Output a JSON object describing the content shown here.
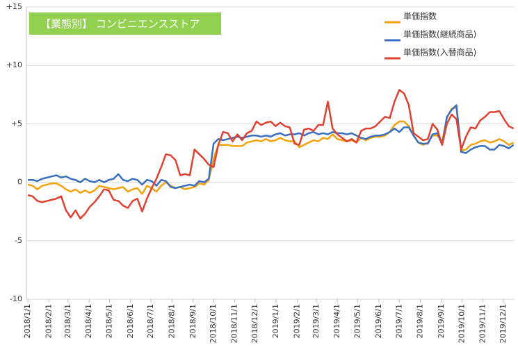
{
  "chart_data": {
    "type": "line",
    "title": "【業態別】 コンビニエンスストア",
    "title_color": "#92d050",
    "x": [
      0,
      1,
      2,
      3,
      4,
      5,
      6,
      7,
      8,
      9,
      10,
      11,
      12,
      13,
      14,
      15,
      16,
      17,
      18,
      19,
      20,
      21,
      22,
      23,
      24,
      25,
      26,
      27,
      28,
      29,
      30,
      31,
      32,
      33,
      34,
      35,
      36,
      37,
      38,
      39,
      40,
      41,
      42,
      43,
      44,
      45,
      46,
      47,
      48,
      49,
      50,
      51,
      52,
      53,
      54,
      55,
      56,
      57,
      58,
      59,
      60,
      61,
      62,
      63,
      64,
      65,
      66,
      67,
      68,
      69,
      70,
      71,
      72,
      73,
      74,
      75,
      76,
      77,
      78,
      79,
      80,
      81,
      82,
      83,
      84,
      85,
      86,
      87,
      88,
      89,
      90,
      91,
      92,
      93,
      94,
      95,
      96,
      97,
      98,
      99,
      100,
      101,
      102
    ],
    "xlim": [
      -0.3,
      102.2
    ],
    "xticks": [
      {
        "value": 0,
        "label": "2018/1/1"
      },
      {
        "value": 4.43,
        "label": "2018/2/1"
      },
      {
        "value": 8.43,
        "label": "2018/3/1"
      },
      {
        "value": 12.86,
        "label": "2018/4/1"
      },
      {
        "value": 17.14,
        "label": "2018/5/1"
      },
      {
        "value": 21.57,
        "label": "2018/6/1"
      },
      {
        "value": 25.86,
        "label": "2018/7/1"
      },
      {
        "value": 30.29,
        "label": "2018/8/1"
      },
      {
        "value": 34.71,
        "label": "2018/9/1"
      },
      {
        "value": 39,
        "label": "2018/10/1"
      },
      {
        "value": 43.43,
        "label": "2018/11/1"
      },
      {
        "value": 47.71,
        "label": "2018/12/1"
      },
      {
        "value": 52.14,
        "label": "2019/1/1"
      },
      {
        "value": 56.57,
        "label": "2019/2/1"
      },
      {
        "value": 60.57,
        "label": "2019/3/1"
      },
      {
        "value": 65,
        "label": "2019/4/1"
      },
      {
        "value": 69.29,
        "label": "2019/5/1"
      },
      {
        "value": 73.71,
        "label": "2019/6/1"
      },
      {
        "value": 78,
        "label": "2019/7/1"
      },
      {
        "value": 82.43,
        "label": "2019/8/1"
      },
      {
        "value": 86.86,
        "label": "2019/9/1"
      },
      {
        "value": 91.14,
        "label": "2019/10/1"
      },
      {
        "value": 95.57,
        "label": "2019/11/1"
      },
      {
        "value": 99.86,
        "label": "2019/12/1"
      }
    ],
    "ylim": [
      -10,
      15
    ],
    "yticks": [
      -10,
      -5,
      0,
      {
        "value": 5,
        "label": "+5"
      },
      {
        "value": 10,
        "label": "+10"
      },
      {
        "value": 15,
        "label": "+15"
      }
    ],
    "grid": true,
    "legend": "top-right",
    "series": [
      {
        "name": "単価指数",
        "color": "#f5a20a",
        "values": [
          -0.2,
          -0.3,
          -0.6,
          -0.3,
          -0.2,
          -0.1,
          -0.1,
          -0.3,
          -0.6,
          -0.8,
          -0.6,
          -0.9,
          -0.7,
          -0.9,
          -0.7,
          -0.3,
          -0.4,
          -0.5,
          -0.6,
          -0.5,
          -0.4,
          -0.8,
          -0.6,
          -0.5,
          -1.0,
          -0.3,
          -0.5,
          -0.8,
          -0.3,
          0.0,
          -0.3,
          -0.5,
          -0.4,
          -0.6,
          -0.5,
          -0.4,
          -0.1,
          -0.2,
          0.2,
          2.0,
          3.2,
          3.2,
          3.2,
          3.1,
          3.1,
          3.1,
          3.4,
          3.5,
          3.6,
          3.5,
          3.7,
          3.5,
          3.6,
          3.8,
          3.6,
          3.5,
          3.5,
          3.0,
          3.2,
          3.4,
          3.6,
          3.5,
          3.8,
          3.7,
          4.1,
          3.7,
          3.6,
          3.5,
          3.6,
          3.4,
          3.8,
          3.6,
          3.8,
          3.9,
          3.9,
          4.0,
          4.3,
          4.9,
          5.2,
          5.2,
          4.8,
          4.0,
          3.4,
          3.2,
          3.4,
          4.0,
          4.0,
          3.5,
          5.5,
          6.3,
          6.4,
          2.7,
          2.8,
          3.2,
          3.3,
          3.5,
          3.6,
          3.4,
          3.5,
          3.7,
          3.5,
          3.2,
          3.4
        ]
      },
      {
        "name": "単価指数(継続商品)",
        "color": "#3a6fbf",
        "values": [
          0.2,
          0.2,
          0.1,
          0.3,
          0.4,
          0.5,
          0.6,
          0.4,
          0.5,
          0.3,
          0.2,
          0.0,
          0.3,
          0.1,
          0.0,
          0.2,
          0.0,
          0.2,
          0.3,
          0.7,
          0.2,
          0.1,
          0.3,
          0.2,
          -0.2,
          0.2,
          0.1,
          -0.3,
          0.2,
          0.1,
          -0.4,
          -0.5,
          -0.4,
          -0.3,
          -0.2,
          -0.3,
          0.1,
          0.0,
          0.3,
          3.3,
          3.7,
          3.6,
          3.7,
          3.8,
          3.9,
          3.8,
          3.9,
          4.0,
          4.0,
          3.9,
          4.0,
          3.9,
          4.1,
          4.2,
          4.0,
          4.1,
          4.1,
          4.2,
          4.0,
          4.2,
          4.3,
          4.1,
          4.2,
          4.1,
          4.3,
          4.2,
          4.2,
          4.1,
          4.2,
          4.0,
          3.8,
          3.7,
          3.9,
          4.0,
          4.0,
          4.1,
          4.3,
          4.6,
          4.3,
          4.7,
          4.7,
          4.0,
          3.4,
          3.3,
          3.3,
          4.1,
          4.2,
          3.2,
          5.6,
          6.2,
          6.6,
          2.6,
          2.5,
          2.8,
          3.0,
          3.1,
          3.1,
          2.8,
          2.8,
          3.2,
          3.1,
          2.9,
          3.2
        ]
      },
      {
        "name": "単価指数(入替商品)",
        "color": "#e0412f",
        "values": [
          -1.1,
          -1.2,
          -1.6,
          -1.7,
          -1.6,
          -1.5,
          -1.4,
          -1.2,
          -2.4,
          -3.0,
          -2.4,
          -3.1,
          -2.7,
          -2.1,
          -1.7,
          -1.2,
          -0.6,
          -0.7,
          -1.5,
          -1.6,
          -2.0,
          -2.2,
          -1.6,
          -1.4,
          -2.5,
          -1.4,
          -0.5,
          0.3,
          1.3,
          2.4,
          2.3,
          1.9,
          0.6,
          0.7,
          0.6,
          2.8,
          2.4,
          2.0,
          1.5,
          1.3,
          3.2,
          4.3,
          4.2,
          3.5,
          4.1,
          3.6,
          4.2,
          4.4,
          5.2,
          4.9,
          5.1,
          5.2,
          4.8,
          5.1,
          4.8,
          4.7,
          3.3,
          3.2,
          4.5,
          4.6,
          4.4,
          4.9,
          4.9,
          6.9,
          4.6,
          4.1,
          3.8,
          3.5,
          3.7,
          3.4,
          4.4,
          4.6,
          4.6,
          4.8,
          5.2,
          5.6,
          5.5,
          6.9,
          7.9,
          7.6,
          6.6,
          4.2,
          3.9,
          3.6,
          3.7,
          5.0,
          4.5,
          3.2,
          5.0,
          5.8,
          5.4,
          2.8,
          3.9,
          4.7,
          4.6,
          5.3,
          5.6,
          6.0,
          6.0,
          6.1,
          5.4,
          4.8,
          4.6
        ]
      }
    ]
  }
}
